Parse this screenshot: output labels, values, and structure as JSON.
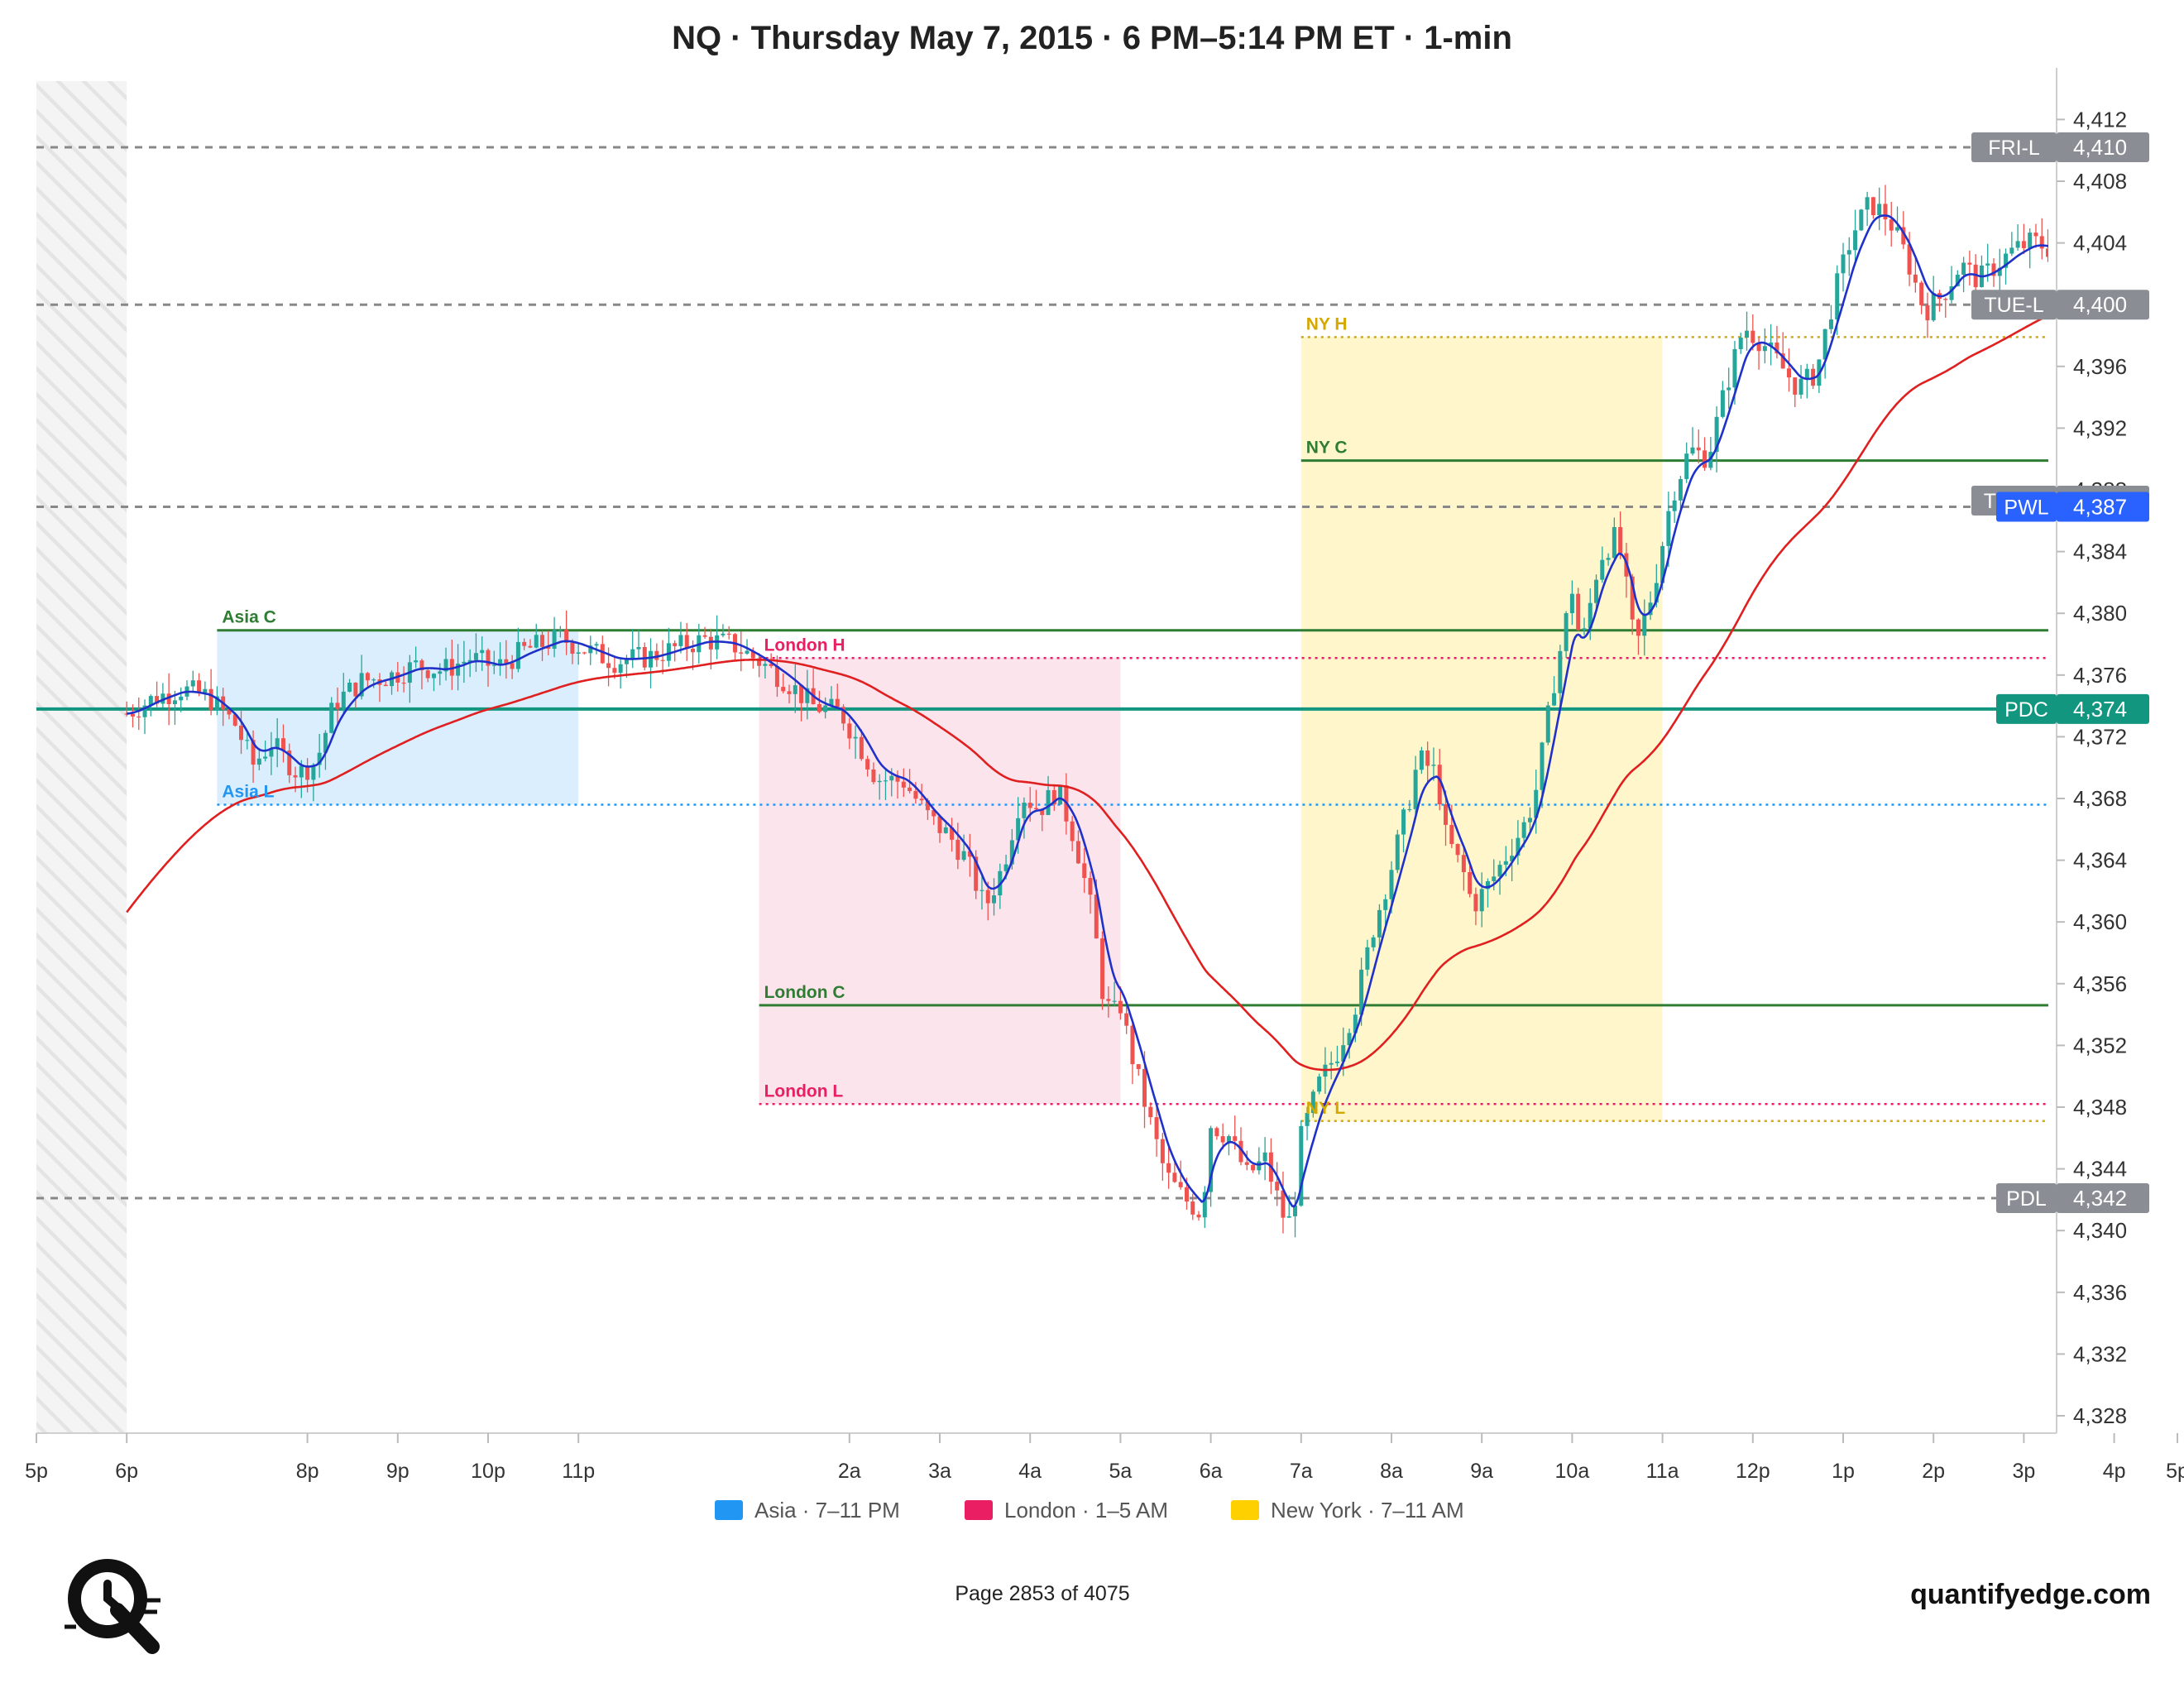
{
  "title": "NQ · Thursday May 7, 2015 · 6 PM–5:14 PM ET · 1-min",
  "footer": {
    "page": "Page 2853 of 4075",
    "brand": "quantifyedge.com"
  },
  "legend": [
    {
      "label": "Asia · 7–11 PM",
      "color": "#2196f3"
    },
    {
      "label": "London · 1–5 AM",
      "color": "#e91e63"
    },
    {
      "label": "New York · 7–11 AM",
      "color": "#ffd000"
    }
  ],
  "chart_data": {
    "type": "candlestick",
    "interval": "1-min",
    "x_axis": {
      "unit": "hours from 5 PM ET (Wed May 6) to 5:14 PM ET (Thu May 7)",
      "range": [
        0,
        24.4
      ],
      "ticks": [
        {
          "h": 0,
          "label": "5p"
        },
        {
          "h": 1,
          "label": "6p"
        },
        {
          "h": 3,
          "label": "8p"
        },
        {
          "h": 4,
          "label": "9p"
        },
        {
          "h": 5,
          "label": "10p"
        },
        {
          "h": 6,
          "label": "11p"
        },
        {
          "h": 9,
          "label": "2a"
        },
        {
          "h": 10,
          "label": "3a"
        },
        {
          "h": 11,
          "label": "4a"
        },
        {
          "h": 12,
          "label": "5a"
        },
        {
          "h": 13,
          "label": "6a"
        },
        {
          "h": 14,
          "label": "7a"
        },
        {
          "h": 15,
          "label": "8a"
        },
        {
          "h": 16,
          "label": "9a"
        },
        {
          "h": 17,
          "label": "10a"
        },
        {
          "h": 18,
          "label": "11a"
        },
        {
          "h": 19,
          "label": "12p"
        },
        {
          "h": 20,
          "label": "1p"
        },
        {
          "h": 21,
          "label": "2p"
        },
        {
          "h": 22,
          "label": "3p"
        },
        {
          "h": 23,
          "label": "4p"
        },
        {
          "h": 23.7,
          "label": "5p"
        }
      ]
    },
    "y_axis": {
      "range": [
        4326,
        4414
      ],
      "position": "right",
      "ticks": [
        4328,
        4332,
        4336,
        4340,
        4344,
        4348,
        4352,
        4356,
        4360,
        4364,
        4368,
        4372,
        4376,
        4380,
        4384,
        4388,
        4392,
        4396,
        4400,
        4404,
        4408,
        4412
      ]
    },
    "sessions": [
      {
        "name": "Asia · 7–11 PM",
        "start": 2,
        "end": 6,
        "high": 4378.9,
        "low": 4367.6,
        "color": "#2196f3"
      },
      {
        "name": "London · 1–5 AM",
        "start": 8,
        "end": 12,
        "high": 4377.1,
        "low": 4348.2,
        "color": "#e91e63"
      },
      {
        "name": "New York · 7–11 AM",
        "start": 14,
        "end": 18,
        "high": 4397.9,
        "low": 4347.1,
        "color": "#ffd000"
      }
    ],
    "session_lines": [
      {
        "label": "Asia C",
        "value": 4378.9,
        "start": 2,
        "color": "#2e7d32",
        "style": "solid"
      },
      {
        "label": "Asia L",
        "value": 4367.6,
        "start": 2,
        "color": "#2196f3",
        "style": "dotted"
      },
      {
        "label": "London H",
        "value": 4377.1,
        "start": 8,
        "color": "#e91e63",
        "style": "dotted"
      },
      {
        "label": "London C",
        "value": 4354.6,
        "start": 8,
        "color": "#2e7d32",
        "style": "solid"
      },
      {
        "label": "London L",
        "value": 4348.2,
        "start": 8,
        "color": "#e91e63",
        "style": "dotted"
      },
      {
        "label": "NY H",
        "value": 4397.9,
        "start": 14,
        "color": "#d4a800",
        "style": "dotted"
      },
      {
        "label": "NY C",
        "value": 4389.9,
        "start": 14,
        "color": "#2e7d32",
        "style": "solid"
      },
      {
        "label": "NY L",
        "value": 4347.1,
        "start": 14,
        "color": "#d4a800",
        "style": "dotted"
      }
    ],
    "reference_levels": [
      {
        "label": "FRI-L",
        "value_text": "4,410",
        "value": 4410.2,
        "style": "dashed",
        "color": "#888888",
        "badge": "#8a8d93"
      },
      {
        "label": "TUE-L",
        "value_text": "4,400",
        "value": 4400.0,
        "style": "dashed",
        "color": "#888888",
        "badge": "#8a8d93"
      },
      {
        "label": "THU-L",
        "value_text": "4,387",
        "value": 4387.3,
        "style": "none",
        "color": "#888888",
        "badge": "#8a8d93"
      },
      {
        "label": "PWL",
        "value_text": "4,387",
        "value": 4386.9,
        "style": "dashed",
        "color": "#888888",
        "badge": "#2962ff"
      },
      {
        "label": "PDC",
        "value_text": "4,374",
        "value": 4373.8,
        "style": "solid",
        "color": "#13967f",
        "badge": "#13967f"
      },
      {
        "label": "PDL",
        "value_text": "4,342",
        "value": 4342.1,
        "style": "dashed",
        "color": "#888888",
        "badge": "#8a8d93"
      }
    ],
    "price_path": [
      [
        1.0,
        4373.5
      ],
      [
        1.3,
        4374.5
      ],
      [
        1.6,
        4375.1
      ],
      [
        1.9,
        4374.6
      ],
      [
        2.2,
        4372.8
      ],
      [
        2.4,
        4370.2
      ],
      [
        2.6,
        4371.6
      ],
      [
        2.9,
        4369.6
      ],
      [
        3.1,
        4370.4
      ],
      [
        3.3,
        4374.2
      ],
      [
        3.6,
        4375.6
      ],
      [
        3.9,
        4375.9
      ],
      [
        4.2,
        4376.6
      ],
      [
        4.5,
        4376.3
      ],
      [
        4.8,
        4377.1
      ],
      [
        5.1,
        4376.5
      ],
      [
        5.4,
        4377.6
      ],
      [
        5.8,
        4378.4
      ],
      [
        6.1,
        4377.6
      ],
      [
        6.4,
        4376.9
      ],
      [
        6.8,
        4377.2
      ],
      [
        7.1,
        4377.8
      ],
      [
        7.4,
        4378.3
      ],
      [
        7.7,
        4378.0
      ],
      [
        8.0,
        4376.9
      ],
      [
        8.3,
        4375.6
      ],
      [
        8.6,
        4374.0
      ],
      [
        8.9,
        4373.6
      ],
      [
        9.1,
        4371.6
      ],
      [
        9.3,
        4369.3
      ],
      [
        9.6,
        4369.1
      ],
      [
        9.9,
        4366.6
      ],
      [
        10.1,
        4365.6
      ],
      [
        10.3,
        4364.0
      ],
      [
        10.5,
        4360.9
      ],
      [
        10.7,
        4363.6
      ],
      [
        10.9,
        4368.3
      ],
      [
        11.1,
        4367.3
      ],
      [
        11.3,
        4368.6
      ],
      [
        11.5,
        4365.3
      ],
      [
        11.7,
        4360.2
      ],
      [
        11.8,
        4355.6
      ],
      [
        11.9,
        4353.9
      ],
      [
        12.0,
        4354.6
      ],
      [
        12.1,
        4351.9
      ],
      [
        12.3,
        4347.6
      ],
      [
        12.5,
        4343.6
      ],
      [
        12.7,
        4342.1
      ],
      [
        12.9,
        4341.1
      ],
      [
        13.0,
        4346.9
      ],
      [
        13.2,
        4346.1
      ],
      [
        13.4,
        4343.6
      ],
      [
        13.6,
        4344.6
      ],
      [
        13.8,
        4341.0
      ],
      [
        13.9,
        4340.4
      ],
      [
        14.0,
        4346.0
      ],
      [
        14.2,
        4349.5
      ],
      [
        14.4,
        4351.6
      ],
      [
        14.6,
        4354.6
      ],
      [
        14.8,
        4359.6
      ],
      [
        15.0,
        4363.6
      ],
      [
        15.2,
        4368.0
      ],
      [
        15.3,
        4370.6
      ],
      [
        15.5,
        4369.6
      ],
      [
        15.6,
        4365.6
      ],
      [
        15.8,
        4363.1
      ],
      [
        15.9,
        4361.0
      ],
      [
        16.1,
        4362.6
      ],
      [
        16.3,
        4364.6
      ],
      [
        16.5,
        4366.6
      ],
      [
        16.6,
        4368.6
      ],
      [
        16.8,
        4375.6
      ],
      [
        17.0,
        4381.6
      ],
      [
        17.1,
        4377.6
      ],
      [
        17.3,
        4383.6
      ],
      [
        17.5,
        4385.1
      ],
      [
        17.6,
        4381.6
      ],
      [
        17.7,
        4377.6
      ],
      [
        17.9,
        4381.6
      ],
      [
        18.1,
        4387.6
      ],
      [
        18.3,
        4390.6
      ],
      [
        18.5,
        4390.1
      ],
      [
        18.7,
        4394.6
      ],
      [
        18.9,
        4398.6
      ],
      [
        19.1,
        4397.6
      ],
      [
        19.3,
        4396.1
      ],
      [
        19.5,
        4394.6
      ],
      [
        19.7,
        4395.6
      ],
      [
        19.9,
        4400.6
      ],
      [
        20.1,
        4404.6
      ],
      [
        20.3,
        4406.6
      ],
      [
        20.5,
        4405.6
      ],
      [
        20.7,
        4403.1
      ],
      [
        20.9,
        4399.6
      ],
      [
        21.1,
        4400.6
      ],
      [
        21.3,
        4402.6
      ],
      [
        21.5,
        4401.6
      ],
      [
        21.7,
        4402.6
      ],
      [
        21.9,
        4403.6
      ],
      [
        22.1,
        4404.1
      ],
      [
        22.3,
        4403.6
      ],
      [
        22.5,
        4401.6
      ],
      [
        22.6,
        4396.6
      ],
      [
        22.8,
        4395.1
      ],
      [
        22.9,
        4393.6
      ],
      [
        23.0,
        4395.6
      ],
      [
        23.1,
        4398.6
      ],
      [
        23.3,
        4400.6
      ],
      [
        23.5,
        4400.6
      ],
      [
        23.7,
        4401.1
      ],
      [
        23.9,
        4402.1
      ],
      [
        24.0,
        4403.6
      ]
    ],
    "series": [
      {
        "kind": "fast-ma",
        "color": "#1f31c9"
      },
      {
        "kind": "slow-ma",
        "color": "#e02020"
      }
    ],
    "candle_colors": {
      "up": "#26a69a",
      "down": "#ef5350"
    },
    "excluded_region": {
      "start": 0,
      "end": 1,
      "pattern": "hatched"
    }
  }
}
